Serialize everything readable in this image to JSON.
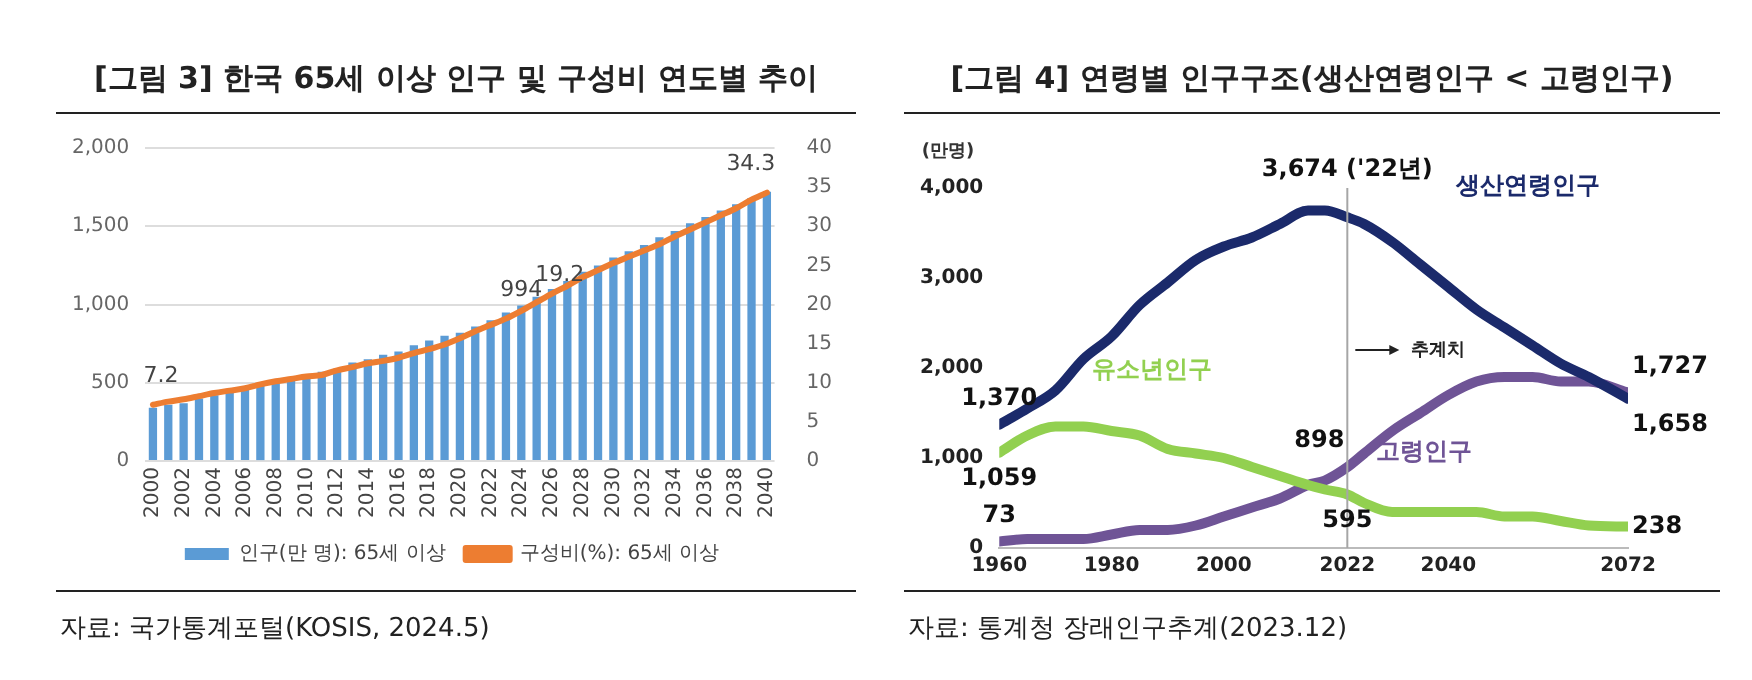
{
  "chart_data": [
    {
      "type": "bar",
      "title": "[그림 3] 한국 65세 이상 인구 및 구성비 연도별 추이",
      "categories": [
        "2000",
        null,
        "2002",
        null,
        "2004",
        null,
        "2006",
        null,
        "2008",
        null,
        "2010",
        null,
        "2012",
        null,
        "2014",
        null,
        "2016",
        null,
        "2018",
        null,
        "2020",
        null,
        "2022",
        null,
        "2024",
        null,
        "2026",
        null,
        "2028",
        null,
        "2030",
        null,
        "2032",
        null,
        "2034",
        null,
        "2036",
        null,
        "2038",
        null,
        "2040"
      ],
      "series": [
        {
          "name": "인구(만 명): 65세 이상",
          "type": "bar",
          "color": "#5b9bd5",
          "values": [
            340,
            360,
            370,
            400,
            420,
            440,
            460,
            480,
            510,
            530,
            550,
            570,
            590,
            630,
            650,
            680,
            700,
            740,
            770,
            800,
            820,
            860,
            900,
            950,
            994,
            1050,
            1100,
            1150,
            1210,
            1250,
            1300,
            1340,
            1380,
            1430,
            1470,
            1520,
            1560,
            1600,
            1640,
            1680,
            1720
          ],
          "value_labels": [
            null,
            null,
            null,
            null,
            null,
            null,
            null,
            null,
            null,
            null,
            null,
            null,
            null,
            null,
            null,
            null,
            null,
            null,
            null,
            null,
            null,
            null,
            null,
            null,
            "994",
            null,
            null,
            null,
            null,
            null,
            null,
            null,
            null,
            null,
            null,
            null,
            null,
            null,
            null,
            null,
            null
          ]
        },
        {
          "name": "구성비(%): 65세 이상",
          "type": "line",
          "axis": "y2",
          "color": "#ed7d31",
          "values": [
            7.2,
            7.6,
            7.9,
            8.3,
            8.7,
            9.0,
            9.3,
            9.8,
            10.2,
            10.5,
            10.8,
            11.0,
            11.6,
            12.0,
            12.5,
            12.8,
            13.2,
            13.8,
            14.3,
            14.9,
            15.7,
            16.6,
            17.4,
            18.2,
            19.2,
            20.3,
            21.4,
            22.4,
            23.5,
            24.4,
            25.3,
            26.1,
            26.9,
            27.7,
            28.7,
            29.6,
            30.5,
            31.4,
            32.3,
            33.4,
            34.3
          ],
          "value_labels": [
            "7.2",
            null,
            null,
            null,
            null,
            null,
            null,
            null,
            null,
            null,
            null,
            null,
            null,
            null,
            null,
            null,
            null,
            null,
            null,
            null,
            null,
            null,
            null,
            null,
            "19.2",
            null,
            null,
            null,
            null,
            null,
            null,
            null,
            null,
            null,
            null,
            null,
            null,
            null,
            null,
            null,
            "34.3"
          ]
        }
      ],
      "ylim": [
        0,
        2000
      ],
      "yticks": [
        {
          "value": 0,
          "label": "0"
        },
        {
          "value": 500,
          "label": "500"
        },
        {
          "value": 1000,
          "label": "1,000"
        },
        {
          "value": 1500,
          "label": "1,500"
        },
        {
          "value": 2000,
          "label": "2,000"
        }
      ],
      "y2lim": [
        0,
        40
      ],
      "y2ticks": [
        0,
        5,
        10,
        15,
        20,
        25,
        30,
        35,
        40
      ],
      "grid": "y",
      "legend": "bottom",
      "annotations": [
        "자료:  국가통계포털(KOSIS, 2024.5)"
      ]
    },
    {
      "type": "line",
      "title": "[그림 4] 연령별 인구구조(생산연령인구 < 고령인구)",
      "ylabel": "(만명)",
      "x": [
        1960,
        1965,
        1970,
        1975,
        1980,
        1985,
        1990,
        1995,
        2000,
        2005,
        2010,
        2015,
        2018,
        2022,
        2025,
        2030,
        2035,
        2040,
        2045,
        2050,
        2055,
        2060,
        2065,
        2072
      ],
      "series": [
        {
          "name": "생산연령인구",
          "color": "#1b2a6b",
          "values": [
            1370,
            1550,
            1750,
            2100,
            2350,
            2700,
            2950,
            3200,
            3350,
            3450,
            3600,
            3750,
            3750,
            3674,
            3600,
            3400,
            3150,
            2900,
            2650,
            2450,
            2250,
            2050,
            1900,
            1658
          ],
          "value_labels": [
            "1,370",
            null,
            null,
            null,
            null,
            null,
            null,
            null,
            null,
            null,
            null,
            null,
            null,
            "3,674 ('22년)",
            null,
            null,
            null,
            null,
            null,
            null,
            null,
            null,
            null,
            "1,658"
          ]
        },
        {
          "name": "유소년인구",
          "color": "#92d050",
          "values": [
            1059,
            1250,
            1350,
            1350,
            1300,
            1250,
            1100,
            1050,
            1000,
            900,
            800,
            700,
            650,
            595,
            500,
            400,
            400,
            400,
            400,
            350,
            350,
            300,
            250,
            238
          ],
          "value_labels": [
            "1,059",
            null,
            null,
            null,
            null,
            null,
            null,
            null,
            null,
            null,
            null,
            null,
            null,
            "595",
            null,
            null,
            null,
            null,
            null,
            null,
            null,
            null,
            null,
            "238"
          ]
        },
        {
          "name": "고령인구",
          "color": "#6f5496",
          "values": [
            73,
            100,
            100,
            100,
            150,
            200,
            200,
            250,
            350,
            450,
            550,
            700,
            750,
            898,
            1050,
            1300,
            1500,
            1700,
            1850,
            1900,
            1900,
            1850,
            1850,
            1727
          ],
          "value_labels": [
            "73",
            null,
            null,
            null,
            null,
            null,
            null,
            null,
            null,
            null,
            null,
            null,
            null,
            "898",
            null,
            null,
            null,
            null,
            null,
            null,
            null,
            null,
            null,
            "1,727"
          ]
        }
      ],
      "xlim": [
        1960,
        2072
      ],
      "xticks": [
        1960,
        1980,
        2000,
        2022,
        2040,
        2072
      ],
      "ylim": [
        0,
        4000
      ],
      "yticks": [
        {
          "value": 0,
          "label": "0"
        },
        {
          "value": 1000,
          "label": "1,000"
        },
        {
          "value": 2000,
          "label": "2,000"
        },
        {
          "value": 3000,
          "label": "3,000"
        },
        {
          "value": 4000,
          "label": "4,000"
        }
      ],
      "grid": false,
      "legend": false,
      "ref_lines": [
        {
          "axis": "x",
          "value": 2022,
          "color": "#a6a6a6"
        }
      ],
      "annotations": [
        "추계치",
        "자료:  통계청 장래인구추계(2023.12)"
      ]
    }
  ]
}
